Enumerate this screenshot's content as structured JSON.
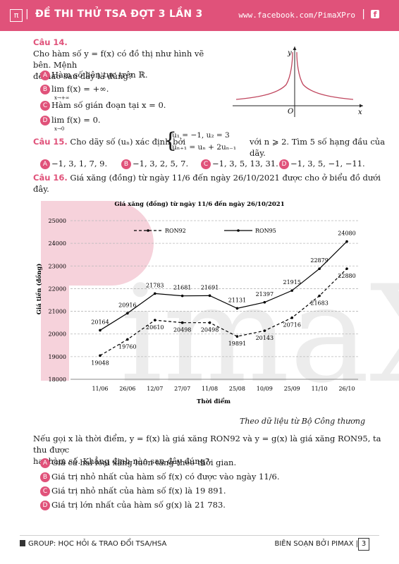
{
  "header": {
    "logo": "π",
    "title": "ĐỀ THI THỬ TSA ĐỢT 3 LẦN 3",
    "url": "www.facebook.com/PimaXPro",
    "fb": "f"
  },
  "watermark": "PimaX",
  "q14": {
    "label": "Câu 14.",
    "stem1": "Cho hàm số y = f(x) có đồ thị như hình vẽ bên. Mệnh",
    "stem2": "đề nào sau đây là đúng?",
    "options": [
      {
        "letter": "A",
        "text": "Hàm số liên tục trên ℝ."
      },
      {
        "letter": "B",
        "text": "lim f(x) = +∞.",
        "sub": "x→+∞"
      },
      {
        "letter": "C",
        "text": "Hàm số gián đoạn tại x = 0."
      },
      {
        "letter": "D",
        "text": "lim f(x) = 0.",
        "sub": "x→0"
      }
    ],
    "graph": {
      "x_label": "x",
      "y_label": "y",
      "origin": "O"
    }
  },
  "q15": {
    "label": "Câu 15.",
    "stem_pre": "Cho dãy số (uₙ) xác định bởi",
    "sys1": "u₁ = −1, u₂ = 3",
    "sys2": "uₙ₊₁ = uₙ + 2uₙ₋₁",
    "stem_post": "với n ⩾ 2. Tìm 5 số hạng đầu của dãy.",
    "options": [
      {
        "letter": "A",
        "text": "−1, 3, 1, 7, 9."
      },
      {
        "letter": "B",
        "text": "−1, 3, 2, 5, 7."
      },
      {
        "letter": "C",
        "text": "−1, 3, 5, 13, 31."
      },
      {
        "letter": "D",
        "text": "−1, 3, 5, −1, −11."
      }
    ]
  },
  "q16": {
    "label": "Câu 16.",
    "stem": "Giá xăng (đồng) từ ngày 11/6 đến ngày 26/10/2021 được cho ở biểu đồ dưới đây.",
    "source": "Theo dữ liệu từ Bộ Công thương",
    "after1": "Nếu gọi x là thời điểm, y = f(x) là giá xăng RON92 và y = g(x) là giá xăng RON95, ta thu được",
    "after2": "hai hàm số. Khẳng định nào sau đây đúng?",
    "options": [
      {
        "letter": "A",
        "text": "Giá cả hai loại xăng luôn tăng theo thời gian."
      },
      {
        "letter": "B",
        "text": "Giá trị nhỏ nhất của hàm số f(x) có được vào ngày 11/6."
      },
      {
        "letter": "C",
        "text": "Giá trị nhỏ nhất của hàm số f(x) là 19 891."
      },
      {
        "letter": "D",
        "text": "Giá trị lớn nhất của hàm số g(x) là 21 783."
      }
    ]
  },
  "chart_data": {
    "type": "line",
    "title": "Giá xăng (đồng) từ ngày 11/6 đến ngày 26/10/2021",
    "xlabel": "Thời điểm",
    "ylabel": "Giá tiền (đồng)",
    "ylim": [
      18000,
      25000
    ],
    "yticks": [
      18000,
      19000,
      20000,
      21000,
      22000,
      23000,
      24000,
      25000
    ],
    "categories": [
      "11/06",
      "26/06",
      "12/07",
      "27/07",
      "11/08",
      "25/08",
      "10/09",
      "25/09",
      "11/10",
      "26/10"
    ],
    "grid": true,
    "legend_position": "top",
    "series": [
      {
        "name": "RON92",
        "style": "dashed",
        "color": "#000000",
        "values": [
          19048,
          19760,
          20610,
          20498,
          20498,
          19891,
          20143,
          20716,
          21683,
          22880
        ],
        "labels": [
          "19048",
          "19760",
          "20610",
          "20498",
          "20498",
          "19891",
          "20143",
          "20716",
          "21683",
          "22880"
        ]
      },
      {
        "name": "RON95",
        "style": "solid",
        "color": "#000000",
        "values": [
          20164,
          20916,
          21783,
          21681,
          21691,
          21131,
          21397,
          21915,
          22879,
          24080
        ],
        "labels": [
          "20164",
          "20916",
          "21783",
          "21681",
          "21691",
          "21131",
          "21397",
          "21915",
          "22879",
          "24080"
        ]
      }
    ]
  },
  "footer": {
    "left": "GROUP: HỌC HỎI & TRAO ĐỔI TSA/HSA",
    "right": "BIÊN SOẠN BỞI PIMAX",
    "page": "3"
  }
}
